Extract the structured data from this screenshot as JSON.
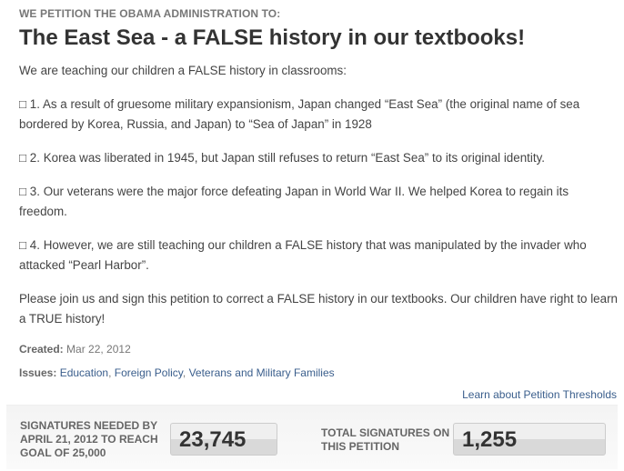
{
  "kicker": "WE PETITION THE OBAMA ADMINISTRATION TO:",
  "title": "The East Sea - a FALSE history in our textbooks!",
  "intro": "We are teaching our children a FALSE history in classrooms:",
  "items": [
    "□ 1. As a result of gruesome military expansionism, Japan changed “East Sea” (the original name of sea bordered by Korea, Russia, and Japan) to “Sea of Japan” in 1928",
    "□ 2. Korea was liberated in 1945, but Japan still refuses to return “East Sea” to its original identity.",
    "□ 3. Our veterans were the major force defeating Japan in World War II. We helped Korea to regain its freedom.",
    "□ 4. However, we are still teaching our children a FALSE history that was manipulated by the invader who attacked “Pearl Harbor”."
  ],
  "closing": "Please join us and sign this petition to correct a FALSE history in our textbooks. Our children have right to learn a TRUE history!",
  "created": {
    "label": "Created:",
    "value": "Mar 22, 2012"
  },
  "issues": {
    "label": "Issues:",
    "links": [
      "Education",
      "Foreign Policy",
      "Veterans and Military Families"
    ]
  },
  "learn_link": "Learn about Petition Thresholds",
  "stats": {
    "needed_label": "SIGNATURES NEEDED BY APRIL 21, 2012 TO REACH GOAL OF 25,000",
    "needed_value": "23,745",
    "total_label": "TOTAL SIGNATURES ON THIS PETITION",
    "total_value": "1,255"
  }
}
